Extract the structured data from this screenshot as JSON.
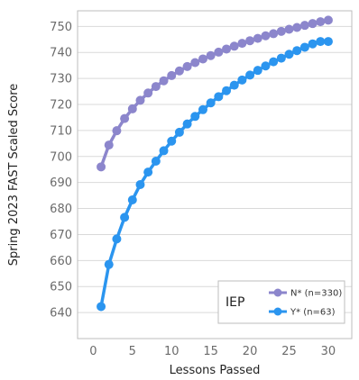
{
  "chart_data": {
    "type": "line",
    "xlabel": "Lessons Passed",
    "ylabel": "Spring 2023 FAST Scaled Score",
    "xlim": [
      -2,
      33
    ],
    "ylim": [
      630,
      756
    ],
    "xticks": [
      0,
      5,
      10,
      15,
      20,
      25,
      30
    ],
    "yticks": [
      640,
      650,
      660,
      670,
      680,
      690,
      700,
      710,
      720,
      730,
      740,
      750
    ],
    "grid": "horizontal",
    "legend": {
      "title": "IEP",
      "placement": "bottom-right"
    },
    "series": [
      {
        "name": "N* (n=330)",
        "color": "#8c86cc",
        "x": [
          1,
          2,
          3,
          4,
          5,
          6,
          7,
          8,
          9,
          10,
          11,
          12,
          13,
          14,
          15,
          16,
          17,
          18,
          19,
          20,
          21,
          22,
          23,
          24,
          25,
          26,
          27,
          28,
          29,
          30
        ],
        "values": [
          696.0,
          704.4,
          709.9,
          714.6,
          718.3,
          721.6,
          724.4,
          726.9,
          729.1,
          731.1,
          732.9,
          734.6,
          736.1,
          737.5,
          738.8,
          740.1,
          741.3,
          742.4,
          743.5,
          744.5,
          745.4,
          746.4,
          747.2,
          748.1,
          748.9,
          749.6,
          750.4,
          751.1,
          751.8,
          752.4
        ]
      },
      {
        "name": "Y* (n=63)",
        "color": "#2b95ef",
        "x": [
          1,
          2,
          3,
          4,
          5,
          6,
          7,
          8,
          9,
          10,
          11,
          12,
          13,
          14,
          15,
          16,
          17,
          18,
          19,
          20,
          21,
          22,
          23,
          24,
          25,
          26,
          27,
          28,
          29,
          30
        ],
        "values": [
          642.3,
          658.5,
          668.3,
          676.6,
          683.3,
          689.2,
          694.0,
          698.2,
          702.2,
          705.9,
          709.3,
          712.5,
          715.4,
          718.0,
          720.6,
          723.0,
          725.3,
          727.4,
          729.4,
          731.3,
          733.1,
          734.8,
          736.4,
          737.8,
          739.3,
          740.7,
          742.0,
          743.3,
          744.2,
          744.2
        ]
      }
    ]
  }
}
